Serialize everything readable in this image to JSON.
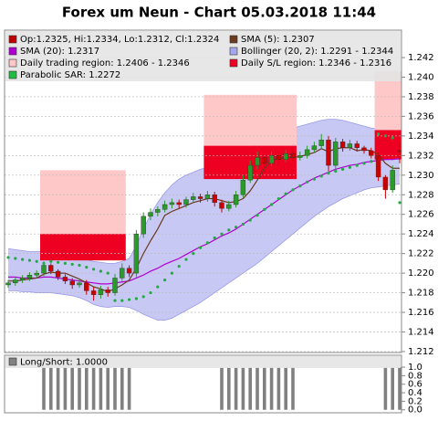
{
  "chart_data": [
    {
      "type": "candlestick",
      "title": "Forex um Neun - Chart 05.03.2018 11:44",
      "ylim": [
        1.2119,
        1.2448
      ],
      "yticks": [
        1.212,
        1.214,
        1.216,
        1.218,
        {
          "value": 1.22,
          "label": "1.220"
        },
        1.222,
        1.224,
        1.226,
        1.228,
        {
          "value": 1.23,
          "label": "1.230"
        },
        1.232,
        1.234,
        1.236,
        1.238,
        {
          "value": 1.24,
          "label": "1.240"
        },
        1.242
      ],
      "grid": true,
      "legend": [
        {
          "label": "Op:1.2325, Hi:1.2334, Lo:1.2312, Cl:1.2324",
          "color": "#c00000"
        },
        {
          "label": "SMA (5): 1.2307",
          "color": "#6b3a1f"
        },
        {
          "label": "SMA (20): 1.2317",
          "color": "#b000d0"
        },
        {
          "label": "Bollinger (20, 2): 1.2291 - 1.2344",
          "color": "#a8a8f0"
        },
        {
          "label": "Daily trading region: 1.2406 - 1.2346",
          "color": "#ffc8c8"
        },
        {
          "label": "Daily S/L region: 1.2346 - 1.2316",
          "color": "#ee0022"
        },
        {
          "label": "Parabolic SAR: 1.2272",
          "color": "#22bb44"
        }
      ],
      "candles": {
        "up_color": "#2a9a2a",
        "down_color": "#cc0000",
        "open": [
          1.2188,
          1.219,
          1.2193,
          1.2195,
          1.2198,
          1.22,
          1.2208,
          1.2202,
          1.2196,
          1.2192,
          1.2188,
          1.219,
          1.2182,
          1.2178,
          1.2183,
          1.218,
          1.2195,
          1.2205,
          1.22,
          1.224,
          1.2258,
          1.2262,
          1.2265,
          1.227,
          1.2272,
          1.227,
          1.2275,
          1.2278,
          1.2276,
          1.228,
          1.2272,
          1.2266,
          1.227,
          1.228,
          1.2295,
          1.231,
          1.2318,
          1.2312,
          1.232,
          1.2316,
          1.2322,
          1.2318,
          1.232,
          1.2326,
          1.233,
          1.2336,
          1.231,
          1.2334,
          1.2328,
          1.2332,
          1.2328,
          1.2325,
          1.232,
          1.2298,
          1.2285,
          1.2325
        ],
        "high": [
          1.2193,
          1.2196,
          1.2198,
          1.2201,
          1.2203,
          1.2212,
          1.221,
          1.2204,
          1.2199,
          1.2195,
          1.2194,
          1.2193,
          1.2186,
          1.2187,
          1.2186,
          1.2199,
          1.221,
          1.2208,
          1.2244,
          1.2262,
          1.2266,
          1.2268,
          1.2274,
          1.2276,
          1.2275,
          1.2278,
          1.2282,
          1.2281,
          1.2284,
          1.2283,
          1.2275,
          1.2274,
          1.2284,
          1.23,
          1.2315,
          1.2324,
          1.232,
          1.2324,
          1.2323,
          1.2326,
          1.2325,
          1.2324,
          1.233,
          1.2334,
          1.2342,
          1.234,
          1.2338,
          1.2337,
          1.2336,
          1.2335,
          1.233,
          1.2328,
          1.2324,
          1.23,
          1.231,
          1.2334
        ],
        "low": [
          1.2185,
          1.2187,
          1.219,
          1.2192,
          1.2195,
          1.2197,
          1.2199,
          1.2193,
          1.2189,
          1.2184,
          1.2185,
          1.2178,
          1.2172,
          1.2174,
          1.2176,
          1.2177,
          1.2192,
          1.2196,
          1.2196,
          1.2236,
          1.2254,
          1.2258,
          1.2262,
          1.2266,
          1.2266,
          1.2267,
          1.2272,
          1.2272,
          1.2273,
          1.2268,
          1.2262,
          1.2263,
          1.2267,
          1.2277,
          1.2292,
          1.2306,
          1.2308,
          1.2309,
          1.2312,
          1.2313,
          1.2315,
          1.2315,
          1.2317,
          1.2323,
          1.2327,
          1.2304,
          1.2306,
          1.2324,
          1.2325,
          1.2324,
          1.2322,
          1.2317,
          1.2294,
          1.2276,
          1.2282,
          1.2312
        ],
        "close": [
          1.219,
          1.2193,
          1.2195,
          1.2198,
          1.22,
          1.2208,
          1.2202,
          1.2196,
          1.2192,
          1.2188,
          1.219,
          1.2182,
          1.2178,
          1.2183,
          1.218,
          1.2195,
          1.2205,
          1.22,
          1.224,
          1.2258,
          1.2262,
          1.2265,
          1.227,
          1.2272,
          1.227,
          1.2275,
          1.2278,
          1.2276,
          1.228,
          1.2272,
          1.2266,
          1.227,
          1.228,
          1.2295,
          1.231,
          1.2318,
          1.2312,
          1.232,
          1.2316,
          1.2322,
          1.2318,
          1.232,
          1.2326,
          1.233,
          1.2336,
          1.231,
          1.2334,
          1.2328,
          1.2332,
          1.2328,
          1.2325,
          1.232,
          1.2298,
          1.2285,
          1.2305,
          1.2324
        ]
      },
      "sma5": {
        "color": "#6b3a1f",
        "values": [
          1.2192,
          1.2192,
          1.2193,
          1.2194,
          1.2195,
          1.2199,
          1.2201,
          1.22,
          1.22,
          1.2197,
          1.2194,
          1.219,
          1.2186,
          1.2184,
          1.2181,
          1.2184,
          1.2188,
          1.2193,
          1.2205,
          1.222,
          1.2233,
          1.2245,
          1.2259,
          1.2263,
          1.2266,
          1.2269,
          1.2272,
          1.2274,
          1.2276,
          1.2276,
          1.2274,
          1.2272,
          1.2273,
          1.2276,
          1.2284,
          1.2295,
          1.2307,
          1.2315,
          1.2317,
          1.2318,
          1.2318,
          1.2319,
          1.2321,
          1.2323,
          1.2327,
          1.2324,
          1.2327,
          1.2328,
          1.2328,
          1.2325,
          1.2326,
          1.2325,
          1.2321,
          1.2312,
          1.2307,
          1.2307
        ]
      },
      "sma20": {
        "color": "#b000d0",
        "values": [
          1.2196,
          1.2196,
          1.2195,
          1.2195,
          1.2195,
          1.2196,
          1.2196,
          1.2195,
          1.2194,
          1.2193,
          1.2192,
          1.2191,
          1.219,
          1.2189,
          1.2189,
          1.219,
          1.2191,
          1.2192,
          1.2195,
          1.2198,
          1.2202,
          1.2205,
          1.2209,
          1.2212,
          1.2215,
          1.2219,
          1.2223,
          1.2227,
          1.223,
          1.2234,
          1.2238,
          1.2241,
          1.2245,
          1.225,
          1.2255,
          1.226,
          1.2265,
          1.227,
          1.2275,
          1.228,
          1.2285,
          1.2289,
          1.2293,
          1.2297,
          1.23,
          1.2303,
          1.2306,
          1.2308,
          1.231,
          1.2311,
          1.2313,
          1.2314,
          1.2315,
          1.2316,
          1.2316,
          1.2317
        ]
      },
      "bollinger": {
        "color": "#c8c8f5",
        "edge_color": "#9a9ae6",
        "upper": [
          1.2225,
          1.2224,
          1.2223,
          1.2222,
          1.2222,
          1.2222,
          1.2222,
          1.2221,
          1.222,
          1.2218,
          1.2216,
          1.2214,
          1.2212,
          1.2211,
          1.221,
          1.221,
          1.2212,
          1.2215,
          1.2228,
          1.2245,
          1.226,
          1.2272,
          1.2282,
          1.229,
          1.2296,
          1.23,
          1.2303,
          1.2306,
          1.2308,
          1.231,
          1.2312,
          1.2315,
          1.2318,
          1.2322,
          1.2328,
          1.2334,
          1.2338,
          1.2342,
          1.2344,
          1.2346,
          1.2348,
          1.235,
          1.2352,
          1.2354,
          1.2356,
          1.2357,
          1.2357,
          1.2356,
          1.2354,
          1.2352,
          1.235,
          1.2348,
          1.2347,
          1.2346,
          1.2345,
          1.2344
        ],
        "lower": [
          1.2182,
          1.2182,
          1.2181,
          1.2181,
          1.218,
          1.218,
          1.218,
          1.2179,
          1.2178,
          1.2177,
          1.2175,
          1.2172,
          1.2168,
          1.2166,
          1.2165,
          1.2166,
          1.2166,
          1.2165,
          1.2162,
          1.2158,
          1.2155,
          1.2152,
          1.2152,
          1.2154,
          1.2158,
          1.2162,
          1.2166,
          1.217,
          1.2175,
          1.218,
          1.2185,
          1.219,
          1.2195,
          1.22,
          1.2205,
          1.221,
          1.2216,
          1.2222,
          1.2228,
          1.2234,
          1.224,
          1.2246,
          1.2252,
          1.2258,
          1.2263,
          1.2268,
          1.2272,
          1.2276,
          1.2279,
          1.2282,
          1.2285,
          1.2287,
          1.2288,
          1.2289,
          1.229,
          1.2291
        ]
      },
      "sar": {
        "color": "#22aa44",
        "values": [
          1.2216,
          1.2215,
          1.2214,
          1.2213,
          1.2212,
          1.221,
          1.2212,
          1.2211,
          1.221,
          1.2209,
          1.2208,
          1.2206,
          1.2204,
          1.2202,
          1.22,
          1.2172,
          1.2172,
          1.2173,
          1.2174,
          1.2176,
          1.218,
          1.2186,
          1.2193,
          1.22,
          1.2207,
          1.2214,
          1.222,
          1.2226,
          1.2231,
          1.2236,
          1.224,
          1.2244,
          1.2247,
          1.225,
          1.2254,
          1.2259,
          1.2265,
          1.227,
          1.2276,
          1.2281,
          1.2285,
          1.2289,
          1.2293,
          1.2296,
          1.2299,
          1.2302,
          1.2304,
          1.2306,
          1.2308,
          1.231,
          1.2312,
          1.2314,
          1.2342,
          1.234,
          1.2338,
          1.2272
        ]
      },
      "regions": {
        "trading_color": "#ffc8c8",
        "sl_color": "#ee0022",
        "days": [
          {
            "start": 5,
            "end": 16,
            "trading": [
              1.2305,
              1.224
            ],
            "sl": [
              1.224,
              1.2213
            ]
          },
          {
            "start": 28,
            "end": 40,
            "trading": [
              1.2382,
              1.233
            ],
            "sl": [
              1.233,
              1.2296
            ]
          },
          {
            "start": 52,
            "end": 55,
            "trading": [
              1.2406,
              1.2346
            ],
            "sl": [
              1.2346,
              1.2316
            ]
          }
        ]
      }
    },
    {
      "type": "bar",
      "legend": {
        "label": "Long/Short: 1.0000",
        "color": "#808080"
      },
      "ylim": [
        -0.07,
        1.28
      ],
      "yticks": [
        {
          "value": 0,
          "label": "0.0"
        },
        0.2,
        0.4,
        0.6,
        0.8,
        {
          "value": 1,
          "label": "1.0"
        }
      ],
      "color": "#808080",
      "values": [
        0,
        0,
        0,
        0,
        0,
        1,
        1,
        1,
        1,
        1,
        1,
        1,
        1,
        1,
        1,
        1,
        1,
        1,
        0,
        0,
        0,
        0,
        0,
        0,
        0,
        0,
        0,
        0,
        0,
        0,
        1,
        1,
        1,
        1,
        1,
        1,
        1,
        1,
        1,
        1,
        1,
        0,
        0,
        0,
        0,
        0,
        0,
        0,
        0,
        0,
        0,
        0,
        0,
        1,
        1,
        1
      ]
    }
  ]
}
